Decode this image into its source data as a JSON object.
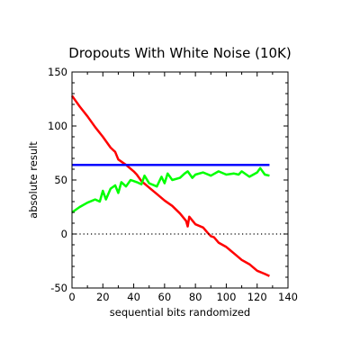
{
  "chart_data": {
    "type": "line",
    "title": "Dropouts With White Noise (10K)",
    "xlabel": "sequential bits randomized",
    "ylabel": "absolute result",
    "xlim": [
      0,
      140
    ],
    "ylim": [
      -50,
      150
    ],
    "x_ticks": [
      0,
      20,
      40,
      60,
      80,
      100,
      120,
      140
    ],
    "y_ticks": [
      -50,
      0,
      50,
      100,
      150
    ],
    "x_tick_labels": [
      "0",
      "20",
      "40",
      "60",
      "80",
      "100",
      "120",
      "140"
    ],
    "y_tick_labels": [
      "-50",
      "0",
      "50",
      "100",
      "150"
    ],
    "grid": false,
    "legend": "none",
    "reference_line": {
      "y": 0,
      "style": "dotted",
      "color": "#000000"
    },
    "series": [
      {
        "color": "#ff0000",
        "x": [
          0,
          2,
          5,
          10,
          15,
          20,
          25,
          28,
          30,
          35,
          40,
          42,
          45,
          50,
          55,
          60,
          65,
          70,
          74,
          75,
          76,
          80,
          85,
          88,
          90,
          92,
          95,
          100,
          105,
          110,
          115,
          120,
          125,
          128
        ],
        "y": [
          128,
          124,
          118,
          109,
          99,
          90,
          80,
          76,
          69,
          64,
          58,
          55,
          49,
          43,
          37,
          31,
          26,
          19,
          12,
          7,
          16,
          9,
          6,
          1,
          -2,
          -3,
          -8,
          -12,
          -18,
          -24,
          -28,
          -34,
          -37,
          -39
        ]
      },
      {
        "color": "#00ff00",
        "x": [
          0,
          5,
          10,
          15,
          18,
          20,
          22,
          25,
          28,
          30,
          32,
          35,
          38,
          40,
          42,
          45,
          47,
          50,
          55,
          58,
          60,
          62,
          65,
          70,
          73,
          75,
          78,
          80,
          85,
          90,
          95,
          100,
          105,
          108,
          110,
          115,
          120,
          122,
          125,
          128
        ],
        "y": [
          20,
          25,
          29,
          32,
          30,
          40,
          32,
          42,
          45,
          38,
          48,
          44,
          50,
          49,
          48,
          46,
          54,
          47,
          44,
          53,
          47,
          56,
          50,
          52,
          56,
          58,
          52,
          55,
          57,
          54,
          58,
          55,
          56,
          55,
          58,
          53,
          57,
          61,
          55,
          54
        ]
      },
      {
        "color": "#0000ff",
        "x": [
          0,
          128
        ],
        "y": [
          64,
          64
        ]
      }
    ]
  }
}
